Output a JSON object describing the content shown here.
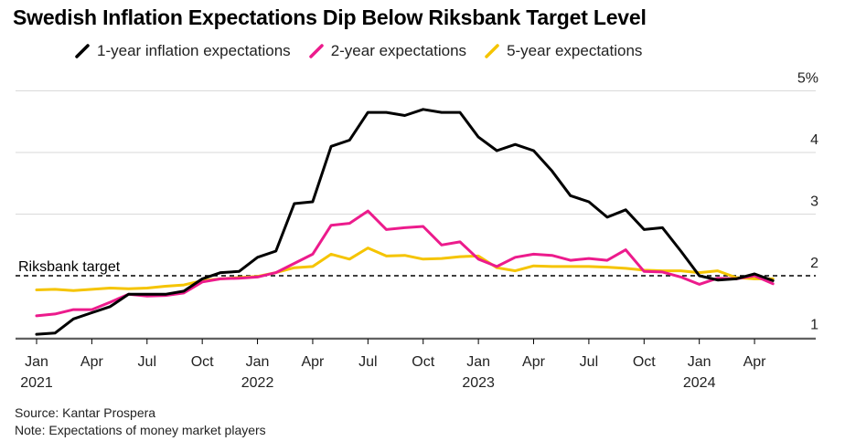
{
  "chart_data": {
    "type": "line",
    "title": "Swedish Inflation Expectations Dip Below Riksbank Target Level",
    "ylim": [
      1,
      5
    ],
    "yticks": [
      {
        "value": 5,
        "label": "5%"
      },
      {
        "value": 4,
        "label": "4"
      },
      {
        "value": 3,
        "label": "3"
      },
      {
        "value": 2,
        "label": "2"
      },
      {
        "value": 1,
        "label": "1"
      }
    ],
    "xticks": [
      {
        "label": "Jan",
        "year": "2021",
        "month_index": 0
      },
      {
        "label": "Apr",
        "month_index": 3
      },
      {
        "label": "Jul",
        "month_index": 6
      },
      {
        "label": "Oct",
        "month_index": 9
      },
      {
        "label": "Jan",
        "year": "2022",
        "month_index": 12
      },
      {
        "label": "Apr",
        "month_index": 15
      },
      {
        "label": "Jul",
        "month_index": 18
      },
      {
        "label": "Oct",
        "month_index": 21
      },
      {
        "label": "Jan",
        "year": "2023",
        "month_index": 24
      },
      {
        "label": "Apr",
        "month_index": 27
      },
      {
        "label": "Jul",
        "month_index": 30
      },
      {
        "label": "Oct",
        "month_index": 33
      },
      {
        "label": "Jan",
        "year": "2024",
        "month_index": 36
      },
      {
        "label": "Apr",
        "month_index": 39
      }
    ],
    "x": [
      "2021-01",
      "2021-02",
      "2021-03",
      "2021-04",
      "2021-05",
      "2021-06",
      "2021-07",
      "2021-08",
      "2021-09",
      "2021-10",
      "2021-11",
      "2021-12",
      "2022-01",
      "2022-02",
      "2022-03",
      "2022-04",
      "2022-05",
      "2022-06",
      "2022-07",
      "2022-08",
      "2022-09",
      "2022-10",
      "2022-11",
      "2022-12",
      "2023-01",
      "2023-02",
      "2023-03",
      "2023-04",
      "2023-05",
      "2023-06",
      "2023-07",
      "2023-08",
      "2023-09",
      "2023-10",
      "2023-11",
      "2023-12",
      "2024-01",
      "2024-02",
      "2024-03",
      "2024-04",
      "2024-05"
    ],
    "series": [
      {
        "name": "1-year inflation expectations",
        "color": "#000000",
        "values": [
          1.05,
          1.07,
          1.3,
          1.4,
          1.5,
          1.7,
          1.7,
          1.7,
          1.75,
          1.95,
          2.05,
          2.07,
          2.3,
          2.4,
          3.17,
          3.2,
          4.1,
          4.2,
          4.65,
          4.65,
          4.6,
          4.7,
          4.65,
          4.65,
          4.25,
          4.03,
          4.13,
          4.03,
          3.7,
          3.3,
          3.2,
          2.95,
          3.07,
          2.75,
          2.78,
          2.4,
          2.0,
          1.93,
          1.95,
          2.03,
          1.92
        ]
      },
      {
        "name": "2-year expectations",
        "color": "#ec1b8c",
        "values": [
          1.35,
          1.38,
          1.45,
          1.45,
          1.57,
          1.7,
          1.67,
          1.68,
          1.72,
          1.9,
          1.95,
          1.96,
          1.98,
          2.05,
          2.2,
          2.35,
          2.82,
          2.85,
          3.05,
          2.75,
          2.78,
          2.8,
          2.5,
          2.55,
          2.27,
          2.15,
          2.3,
          2.35,
          2.33,
          2.25,
          2.28,
          2.25,
          2.42,
          2.07,
          2.06,
          1.98,
          1.86,
          1.96,
          1.95,
          2.0,
          1.87
        ]
      },
      {
        "name": "5-year expectations",
        "color": "#f5c400",
        "values": [
          1.77,
          1.78,
          1.76,
          1.78,
          1.8,
          1.79,
          1.8,
          1.83,
          1.85,
          1.92,
          1.95,
          1.97,
          1.99,
          2.05,
          2.13,
          2.15,
          2.35,
          2.27,
          2.45,
          2.32,
          2.33,
          2.27,
          2.28,
          2.31,
          2.32,
          2.13,
          2.08,
          2.16,
          2.15,
          2.15,
          2.15,
          2.14,
          2.12,
          2.09,
          2.08,
          2.08,
          2.05,
          2.08,
          1.97,
          1.95,
          1.95
        ]
      }
    ],
    "reference_line": {
      "value": 2,
      "label": "Riksbank target",
      "style": "dashed"
    },
    "legend_placement": "top",
    "grid": "horizontal"
  },
  "footer": {
    "source": "Source: Kantar Prospera",
    "note": "Note: Expectations of money market players"
  }
}
